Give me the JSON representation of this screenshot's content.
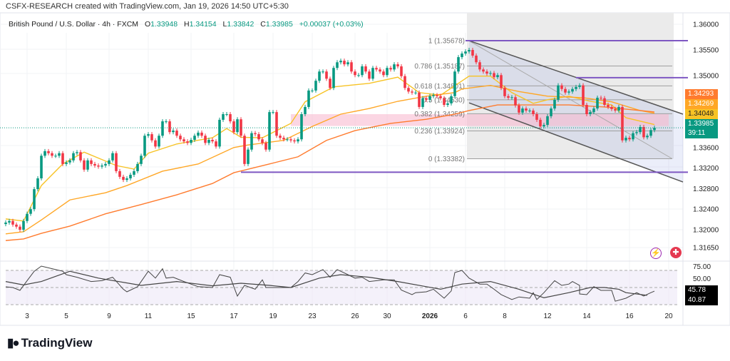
{
  "header": {
    "credit": "CSFX-RESEARCH created with TradingView.com, Jan 19, 2026 14:50 UTC+5:30",
    "symbol": "British Pound / U.S. Dollar · 4h · FXCM",
    "open_label": "O",
    "open": "1.33948",
    "high_label": "H",
    "high": "1.34154",
    "low_label": "L",
    "low": "1.33842",
    "close_label": "C",
    "close": "1.33985",
    "change": "+0.00037 (+0.03%)"
  },
  "logo": {
    "text": "TradingView"
  },
  "icons": [
    "lightning-icon",
    "uk-flag-icon"
  ],
  "colors": {
    "up": "#089981",
    "down": "#f23645",
    "ma_fast": "#f7c325",
    "ma_mid": "#ffa726",
    "ma_slow": "#ff7b2e",
    "level": "#7e57c2",
    "zone": "#f8bbd0",
    "rsi": "#444444"
  },
  "chart_data": {
    "type": "candlestick",
    "price_axis": {
      "ylim": [
        1.3145,
        1.362
      ],
      "ticks": [
        "1.36000",
        "1.35500",
        "1.35000",
        "1.33600",
        "1.33200",
        "1.32800",
        "1.32400",
        "1.32000",
        "1.31650"
      ]
    },
    "time_axis": {
      "ticks": [
        [
          "3",
          6
        ],
        [
          "5",
          17
        ],
        [
          "9",
          29
        ],
        [
          "11",
          40
        ],
        [
          "15",
          52
        ],
        [
          "17",
          64
        ],
        [
          "19",
          75
        ],
        [
          "23",
          86
        ],
        [
          "26",
          98
        ],
        [
          "30",
          107
        ],
        [
          "2026",
          119
        ],
        [
          "6",
          129
        ],
        [
          "8",
          140
        ],
        [
          "12",
          152
        ],
        [
          "14",
          163
        ],
        [
          "16",
          175
        ],
        [
          "20",
          186
        ]
      ]
    },
    "closes": [
      1.3214,
      1.3217,
      1.321,
      1.3206,
      1.32,
      1.3217,
      1.3231,
      1.324,
      1.3279,
      1.33,
      1.3344,
      1.3353,
      1.3349,
      1.3344,
      1.3344,
      1.3349,
      1.3328,
      1.3331,
      1.3335,
      1.3349,
      1.3351,
      1.3335,
      1.3317,
      1.3335,
      1.3328,
      1.3325,
      1.3323,
      1.3325,
      1.3328,
      1.3335,
      1.3349,
      1.3314,
      1.3303,
      1.3297,
      1.33,
      1.3307,
      1.3314,
      1.3328,
      1.3344,
      1.3383,
      1.3386,
      1.3374,
      1.3362,
      1.3383,
      1.3411,
      1.3411,
      1.339,
      1.3393,
      1.3383,
      1.3376,
      1.3372,
      1.3369,
      1.3375,
      1.3383,
      1.3389,
      1.3383,
      1.3369,
      1.3375,
      1.3372,
      1.3362,
      1.3414,
      1.3425,
      1.3425,
      1.3411,
      1.339,
      1.3415,
      1.3383,
      1.3328,
      1.3356,
      1.3388,
      1.3386,
      1.3376,
      1.3369,
      1.3356,
      1.3429,
      1.3429,
      1.3383,
      1.3379,
      1.3376,
      1.3376,
      1.3374,
      1.3372,
      1.3376,
      1.3425,
      1.3439,
      1.3471,
      1.3471,
      1.349,
      1.3508,
      1.3508,
      1.3494,
      1.3476,
      1.3515,
      1.3526,
      1.3529,
      1.3522,
      1.3526,
      1.3508,
      1.3501,
      1.3501,
      1.3518,
      1.3508,
      1.3494,
      1.3515,
      1.3512,
      1.3508,
      1.3501,
      1.3515,
      1.3512,
      1.3522,
      1.3518,
      1.3499,
      1.3476,
      1.3469,
      1.3467,
      1.3467,
      1.3439,
      1.3456,
      1.3453,
      1.346,
      1.3462,
      1.346,
      1.3456,
      1.3443,
      1.3446,
      1.346,
      1.3508,
      1.3536,
      1.3543,
      1.3547,
      1.355,
      1.3539,
      1.3526,
      1.3512,
      1.3508,
      1.3504,
      1.3505,
      1.3497,
      1.3501,
      1.3476,
      1.346,
      1.3457,
      1.3458,
      1.3442,
      1.3428,
      1.3436,
      1.3432,
      1.3432,
      1.3425,
      1.3414,
      1.3401,
      1.3404,
      1.3421,
      1.3436,
      1.3453,
      1.3481,
      1.3474,
      1.3467,
      1.3469,
      1.3474,
      1.3478,
      1.3481,
      1.3443,
      1.3425,
      1.3429,
      1.3436,
      1.3457,
      1.3456,
      1.3443,
      1.3439,
      1.3435,
      1.3432,
      1.3439,
      1.3374,
      1.3379,
      1.3376,
      1.3388,
      1.339,
      1.34,
      1.338,
      1.3383,
      1.3394,
      1.33985
    ],
    "moving_averages": [
      {
        "value": "1.34048",
        "color": "#f7c325",
        "points": [
          [
            0,
            1.3221
          ],
          [
            5,
            1.3217
          ],
          [
            10,
            1.3286
          ],
          [
            16,
            1.3328
          ],
          [
            22,
            1.3351
          ],
          [
            31,
            1.3325
          ],
          [
            36,
            1.3318
          ],
          [
            40,
            1.3349
          ],
          [
            48,
            1.3367
          ],
          [
            58,
            1.3379
          ],
          [
            62,
            1.3397
          ],
          [
            66,
            1.338
          ],
          [
            72,
            1.3379
          ],
          [
            80,
            1.3407
          ],
          [
            84,
            1.3449
          ],
          [
            92,
            1.3478
          ],
          [
            102,
            1.3485
          ],
          [
            110,
            1.3497
          ],
          [
            116,
            1.3467
          ],
          [
            122,
            1.3462
          ],
          [
            127,
            1.3485
          ],
          [
            130,
            1.3499
          ],
          [
            136,
            1.3499
          ],
          [
            142,
            1.3467
          ],
          [
            148,
            1.3446
          ],
          [
            152,
            1.3453
          ],
          [
            158,
            1.346
          ],
          [
            164,
            1.345
          ],
          [
            170,
            1.3443
          ],
          [
            174,
            1.3418
          ],
          [
            182,
            1.34048
          ]
        ]
      },
      {
        "value": "1.34269",
        "color": "#ffa726",
        "points": [
          [
            0,
            1.3192
          ],
          [
            5,
            1.3196
          ],
          [
            10,
            1.3219
          ],
          [
            18,
            1.3258
          ],
          [
            28,
            1.3272
          ],
          [
            34,
            1.3286
          ],
          [
            44,
            1.3314
          ],
          [
            54,
            1.3328
          ],
          [
            64,
            1.336
          ],
          [
            68,
            1.3365
          ],
          [
            78,
            1.3374
          ],
          [
            86,
            1.3401
          ],
          [
            94,
            1.3425
          ],
          [
            102,
            1.3436
          ],
          [
            110,
            1.345
          ],
          [
            118,
            1.346
          ],
          [
            126,
            1.3467
          ],
          [
            128,
            1.3474
          ],
          [
            136,
            1.3481
          ],
          [
            144,
            1.3469
          ],
          [
            152,
            1.346
          ],
          [
            162,
            1.3457
          ],
          [
            170,
            1.3449
          ],
          [
            178,
            1.3432
          ],
          [
            182,
            1.34269
          ]
        ]
      },
      {
        "value": "1.34293",
        "color": "#ff7b2e",
        "points": [
          [
            0,
            1.3179
          ],
          [
            5,
            1.3182
          ],
          [
            10,
            1.3193
          ],
          [
            18,
            1.3207
          ],
          [
            28,
            1.3231
          ],
          [
            38,
            1.3249
          ],
          [
            48,
            1.3268
          ],
          [
            58,
            1.329
          ],
          [
            64,
            1.3311
          ],
          [
            74,
            1.3328
          ],
          [
            82,
            1.3342
          ],
          [
            90,
            1.3374
          ],
          [
            98,
            1.3393
          ],
          [
            108,
            1.3407
          ],
          [
            118,
            1.3415
          ],
          [
            126,
            1.3425
          ],
          [
            130,
            1.3432
          ],
          [
            138,
            1.3443
          ],
          [
            148,
            1.3443
          ],
          [
            158,
            1.3443
          ],
          [
            168,
            1.3439
          ],
          [
            178,
            1.3432
          ],
          [
            182,
            1.34293
          ]
        ]
      }
    ],
    "fibonacci": [
      {
        "ratio": "1",
        "price": "1.35678"
      },
      {
        "ratio": "0.786",
        "price": "1.35187"
      },
      {
        "ratio": "0.618",
        "price": "1.34801"
      },
      {
        "ratio": "0.5",
        "price": "1.34530"
      },
      {
        "ratio": "0.382",
        "price": "1.34259"
      },
      {
        "ratio": "0.236",
        "price": "1.33924"
      },
      {
        "ratio": "0",
        "price": "1.33382"
      }
    ],
    "horizontal_levels": [
      [
        129,
        1.3568
      ],
      [
        160,
        1.3496
      ],
      [
        66,
        1.3312
      ]
    ],
    "zone": {
      "from": 80,
      "top": 1.3425,
      "bottom": 1.3402
    },
    "channel": {
      "upper": [
        [
          130,
          1.3568
        ],
        [
          190,
          1.3425
        ]
      ],
      "lower": [
        [
          130,
          1.3447
        ],
        [
          190,
          1.3293
        ]
      ]
    },
    "current_price": {
      "value": "1.33985",
      "countdown": "39:11"
    },
    "rsi": {
      "axis_label": "75.00",
      "hidden_label": "50.00",
      "bands": [
        70,
        50,
        30
      ],
      "value": "45.78",
      "signal_value": "40.87",
      "line": [
        [
          0,
          50.8
        ],
        [
          2,
          50
        ],
        [
          4,
          46.7
        ],
        [
          6,
          58
        ],
        [
          8,
          69
        ],
        [
          10,
          75
        ],
        [
          13,
          72
        ],
        [
          16,
          69
        ],
        [
          17,
          65
        ],
        [
          20,
          62
        ],
        [
          24,
          57
        ],
        [
          27,
          58
        ],
        [
          30,
          62
        ],
        [
          33,
          48
        ],
        [
          34,
          45
        ],
        [
          37,
          51
        ],
        [
          40,
          69
        ],
        [
          42,
          61
        ],
        [
          44,
          72
        ],
        [
          45,
          61
        ],
        [
          47,
          62
        ],
        [
          50,
          57
        ],
        [
          54,
          51
        ],
        [
          58,
          50
        ],
        [
          60,
          65
        ],
        [
          63,
          62
        ],
        [
          65,
          40
        ],
        [
          67,
          52.5
        ],
        [
          70,
          48
        ],
        [
          72,
          59
        ],
        [
          73,
          50
        ],
        [
          76,
          50
        ],
        [
          80,
          50
        ],
        [
          82,
          57
        ],
        [
          84,
          67
        ],
        [
          86,
          65
        ],
        [
          89,
          71
        ],
        [
          91,
          62
        ],
        [
          93,
          71
        ],
        [
          96,
          65
        ],
        [
          98,
          61
        ],
        [
          100,
          62
        ],
        [
          102,
          57
        ],
        [
          106,
          59
        ],
        [
          109,
          59
        ],
        [
          111,
          47
        ],
        [
          114,
          41.7
        ],
        [
          115,
          44
        ],
        [
          118,
          45
        ],
        [
          120,
          48
        ],
        [
          123,
          37.5
        ],
        [
          125,
          46
        ],
        [
          126,
          67.5
        ],
        [
          128,
          70
        ],
        [
          130,
          61
        ],
        [
          133,
          54
        ],
        [
          135,
          54
        ],
        [
          137,
          48
        ],
        [
          139,
          41.7
        ],
        [
          142,
          36
        ],
        [
          144,
          39
        ],
        [
          147,
          37.5
        ],
        [
          148,
          44
        ],
        [
          149,
          36
        ],
        [
          151,
          44
        ],
        [
          154,
          58
        ],
        [
          156,
          52.5
        ],
        [
          158,
          54
        ],
        [
          159,
          57
        ],
        [
          161,
          52.5
        ],
        [
          161,
          42.5
        ],
        [
          163,
          41.7
        ],
        [
          165,
          51
        ],
        [
          167,
          46.7
        ],
        [
          170,
          46.7
        ],
        [
          171,
          34
        ],
        [
          174,
          37.5
        ],
        [
          177,
          44
        ],
        [
          179,
          40
        ],
        [
          181,
          44
        ],
        [
          182,
          45.78
        ]
      ],
      "signal": [
        [
          0,
          57
        ],
        [
          5,
          53
        ],
        [
          10,
          57
        ],
        [
          18,
          69
        ],
        [
          26,
          61
        ],
        [
          38,
          52.5
        ],
        [
          48,
          57
        ],
        [
          58,
          52
        ],
        [
          66,
          55
        ],
        [
          74,
          52.5
        ],
        [
          80,
          50
        ],
        [
          88,
          61
        ],
        [
          94,
          65
        ],
        [
          102,
          62
        ],
        [
          110,
          57
        ],
        [
          118,
          51
        ],
        [
          122,
          48
        ],
        [
          128,
          54
        ],
        [
          136,
          57
        ],
        [
          144,
          48
        ],
        [
          151,
          38
        ],
        [
          158,
          44
        ],
        [
          164,
          50
        ],
        [
          168,
          50
        ],
        [
          172,
          48
        ],
        [
          174,
          44
        ],
        [
          180,
          40.87
        ]
      ]
    }
  }
}
